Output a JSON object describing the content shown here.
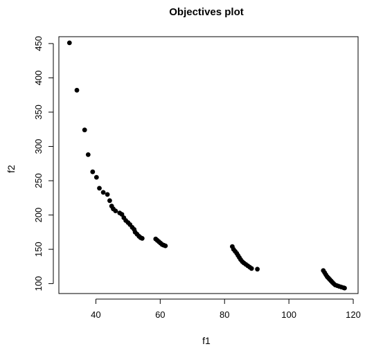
{
  "chart_data": {
    "type": "scatter",
    "title": "Objectives plot",
    "xlabel": "f1",
    "ylabel": "f2",
    "xlim": [
      28.5,
      121.5
    ],
    "ylim": [
      85.5,
      460
    ],
    "xticks": [
      40,
      60,
      80,
      100,
      120
    ],
    "yticks": [
      100,
      150,
      200,
      250,
      300,
      350,
      400,
      450
    ],
    "grid": false,
    "point_color": "#000000",
    "points": [
      {
        "x": 31.8,
        "y": 451
      },
      {
        "x": 34.1,
        "y": 382
      },
      {
        "x": 36.5,
        "y": 324
      },
      {
        "x": 37.6,
        "y": 288
      },
      {
        "x": 39.0,
        "y": 263
      },
      {
        "x": 40.2,
        "y": 255
      },
      {
        "x": 41.1,
        "y": 239
      },
      {
        "x": 42.3,
        "y": 233
      },
      {
        "x": 43.6,
        "y": 230
      },
      {
        "x": 44.3,
        "y": 221
      },
      {
        "x": 44.9,
        "y": 213
      },
      {
        "x": 45.4,
        "y": 209
      },
      {
        "x": 46.1,
        "y": 206
      },
      {
        "x": 47.4,
        "y": 203
      },
      {
        "x": 48.1,
        "y": 201
      },
      {
        "x": 48.7,
        "y": 196
      },
      {
        "x": 49.3,
        "y": 192
      },
      {
        "x": 50.0,
        "y": 189
      },
      {
        "x": 50.6,
        "y": 186
      },
      {
        "x": 51.3,
        "y": 182
      },
      {
        "x": 51.9,
        "y": 179
      },
      {
        "x": 52.2,
        "y": 175
      },
      {
        "x": 52.8,
        "y": 172
      },
      {
        "x": 53.4,
        "y": 169
      },
      {
        "x": 53.9,
        "y": 167
      },
      {
        "x": 54.4,
        "y": 166
      },
      {
        "x": 58.6,
        "y": 165
      },
      {
        "x": 59.1,
        "y": 163
      },
      {
        "x": 59.6,
        "y": 161
      },
      {
        "x": 60.1,
        "y": 159
      },
      {
        "x": 60.6,
        "y": 157
      },
      {
        "x": 61.1,
        "y": 156
      },
      {
        "x": 61.6,
        "y": 155
      },
      {
        "x": 82.4,
        "y": 154
      },
      {
        "x": 82.8,
        "y": 150
      },
      {
        "x": 83.3,
        "y": 147
      },
      {
        "x": 83.8,
        "y": 144
      },
      {
        "x": 84.2,
        "y": 141
      },
      {
        "x": 84.6,
        "y": 138
      },
      {
        "x": 85.0,
        "y": 135
      },
      {
        "x": 85.5,
        "y": 132
      },
      {
        "x": 86.0,
        "y": 130
      },
      {
        "x": 86.6,
        "y": 128
      },
      {
        "x": 87.2,
        "y": 126
      },
      {
        "x": 87.8,
        "y": 124
      },
      {
        "x": 88.4,
        "y": 122
      },
      {
        "x": 90.2,
        "y": 121
      },
      {
        "x": 110.7,
        "y": 119
      },
      {
        "x": 111.1,
        "y": 116
      },
      {
        "x": 111.5,
        "y": 113
      },
      {
        "x": 111.9,
        "y": 110
      },
      {
        "x": 112.3,
        "y": 108
      },
      {
        "x": 112.7,
        "y": 106
      },
      {
        "x": 113.1,
        "y": 104
      },
      {
        "x": 113.5,
        "y": 102
      },
      {
        "x": 113.9,
        "y": 100
      },
      {
        "x": 114.4,
        "y": 98
      },
      {
        "x": 115.0,
        "y": 97
      },
      {
        "x": 115.6,
        "y": 96
      },
      {
        "x": 116.3,
        "y": 95
      },
      {
        "x": 117.0,
        "y": 94
      },
      {
        "x": 117.3,
        "y": 93.5
      }
    ]
  }
}
